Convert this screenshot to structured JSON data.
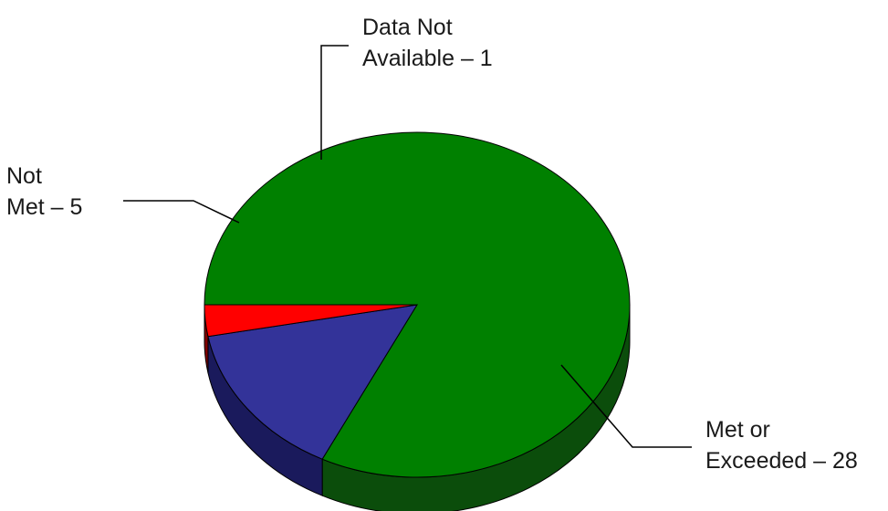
{
  "chart_data": {
    "type": "pie",
    "title": "",
    "slices": [
      {
        "label_lines": [
          "Met or",
          "Exceeded – 28"
        ],
        "value": 28,
        "color": "#008000",
        "side_color": "#0b4d0b"
      },
      {
        "label_lines": [
          "Not",
          "Met – 5"
        ],
        "value": 5,
        "color": "#333399",
        "side_color": "#1a1a5c"
      },
      {
        "label_lines": [
          "Data Not",
          "Available – 1"
        ],
        "value": 1,
        "color": "#ff0000",
        "side_color": "#800000"
      }
    ],
    "legend": "none",
    "style": "3d"
  }
}
